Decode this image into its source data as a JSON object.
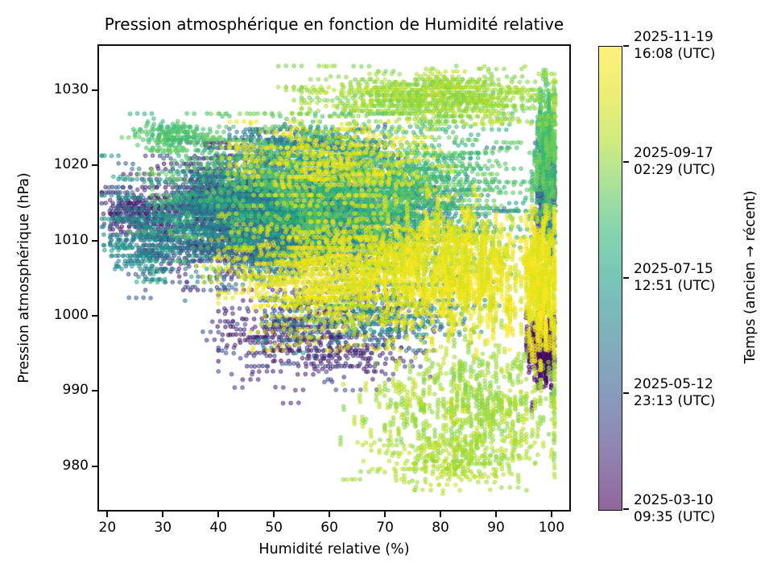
{
  "title": "Pression atmosphérique en fonction de Humidité relative",
  "axes": {
    "x": {
      "label": "Humidité relative (%)",
      "ticks": [
        20,
        30,
        40,
        50,
        60,
        70,
        80,
        90,
        100
      ],
      "range": [
        18.5,
        103.2
      ]
    },
    "y": {
      "label": "Pression atmosphérique (hPa)",
      "ticks": [
        980,
        990,
        1000,
        1010,
        1020,
        1030
      ],
      "range": [
        974.2,
        1035.9
      ]
    }
  },
  "colorbar": {
    "label": "Temps (ancien → récent)",
    "colormap": "viridis",
    "alpha": 0.6,
    "ticks": [
      {
        "line1": "2025-11-19",
        "line2": "16:08 (UTC)",
        "fraction_from_top": 0
      },
      {
        "line1": "2025-09-17",
        "line2": "02:29 (UTC)",
        "fraction_from_top": 0.25
      },
      {
        "line1": "2025-07-15",
        "line2": "12:51 (UTC)",
        "fraction_from_top": 0.5
      },
      {
        "line1": "2025-05-12",
        "line2": "23:13 (UTC)",
        "fraction_from_top": 0.75
      },
      {
        "line1": "2025-03-10",
        "line2": "09:35 (UTC)",
        "fraction_from_top": 1
      }
    ],
    "viridis_stops": [
      "#440154",
      "#482878",
      "#3e4a89",
      "#31688e",
      "#26828e",
      "#1f9e89",
      "#35b779",
      "#6ece58",
      "#b5de2b",
      "#dfe318",
      "#fde725"
    ]
  },
  "chart_data": {
    "type": "scatter",
    "title": "Pression atmosphérique en fonction de Humidité relative",
    "xlabel": "Humidité relative (%)",
    "ylabel": "Pression atmosphérique (hPa)",
    "color_label": "Temps (ancien → récent)",
    "xlim": [
      18.5,
      103.2
    ],
    "ylim": [
      974.2,
      1035.9
    ],
    "xticks": [
      20,
      30,
      40,
      50,
      60,
      70,
      80,
      90,
      100
    ],
    "yticks": [
      980,
      990,
      1000,
      1010,
      1020,
      1030
    ],
    "time_start": "2025-03-10 09:35 (UTC)",
    "time_end": "2025-11-19 16:08 (UTC)",
    "marker": {
      "radius_px": 2.3,
      "fill_alpha": 0.5,
      "edge_alpha": 0.85
    },
    "grid": false,
    "legend": "colorbar-right",
    "n_dots_approx": 19000,
    "clusters": [
      {
        "name": "purple-right-edge",
        "n": 260,
        "t": [
          0.0,
          0.1
        ],
        "x": {
          "m": 98.3,
          "s": 1.1,
          "min": 95.5,
          "max": 100.4
        },
        "y": {
          "m": 995.5,
          "s": 2.2,
          "min": 988.5,
          "max": 1000.5
        },
        "run": {
          "dir": "v",
          "max": 5,
          "step": 0.38
        }
      },
      {
        "name": "purple-main-band",
        "n": 800,
        "t": [
          0.02,
          0.2
        ],
        "x": {
          "m": 45,
          "s": 10,
          "min": 21,
          "max": 75
        },
        "y": {
          "m": 1014,
          "s": 4,
          "min": 1001,
          "max": 1023
        },
        "run": {
          "dir": "h",
          "max": 4,
          "step": 1.3
        }
      },
      {
        "name": "purple-left-tail",
        "n": 90,
        "t": [
          0.03,
          0.15
        ],
        "x": {
          "m": 25,
          "s": 3,
          "min": 20.5,
          "max": 32
        },
        "y": {
          "m": 1014,
          "s": 1.3,
          "min": 1011,
          "max": 1017
        },
        "run": {
          "dir": "h",
          "max": 2,
          "step": 1.2
        }
      },
      {
        "name": "purple-low-scatter",
        "n": 350,
        "t": [
          0.03,
          0.22
        ],
        "x": {
          "m": 57,
          "s": 9,
          "min": 40,
          "max": 80
        },
        "y": {
          "m": 997,
          "s": 3,
          "min": 988,
          "max": 1003.5
        },
        "run": {
          "dir": "h",
          "max": 3,
          "step": 1.4
        }
      },
      {
        "name": "navy-band",
        "n": 600,
        "t": [
          0.18,
          0.32
        ],
        "x": {
          "m": 50,
          "s": 12,
          "min": 22,
          "max": 85
        },
        "y": {
          "m": 1012,
          "s": 4,
          "min": 1002,
          "max": 1021
        },
        "run": {
          "dir": "h",
          "max": 4,
          "step": 1.3
        }
      },
      {
        "name": "navy-right-edge",
        "n": 120,
        "t": [
          0.16,
          0.3
        ],
        "x": {
          "m": 99,
          "s": 1,
          "min": 96.5,
          "max": 100.4
        },
        "y": {
          "m": 1017,
          "s": 3.5,
          "min": 1010,
          "max": 1023
        },
        "run": {
          "dir": "v",
          "max": 4,
          "step": 0.4
        }
      },
      {
        "name": "teal-core",
        "n": 1400,
        "t": [
          0.3,
          0.55
        ],
        "x": {
          "m": 55,
          "s": 14,
          "min": 22,
          "max": 96
        },
        "y": {
          "m": 1013.5,
          "s": 3.5,
          "min": 1004,
          "max": 1022.5
        },
        "run": {
          "dir": "h",
          "max": 5,
          "step": 1.25
        }
      },
      {
        "name": "teal-high",
        "n": 200,
        "t": [
          0.25,
          0.45
        ],
        "x": {
          "m": 55,
          "s": 8,
          "min": 42,
          "max": 70
        },
        "y": {
          "m": 1023,
          "s": 1.1,
          "min": 1021,
          "max": 1026
        },
        "run": {
          "dir": "h",
          "max": 3,
          "step": 1.2
        }
      },
      {
        "name": "teal-left-tail",
        "n": 130,
        "t": [
          0.35,
          0.5
        ],
        "x": {
          "m": 27,
          "s": 4,
          "min": 20.5,
          "max": 36
        },
        "y": {
          "m": 1009,
          "s": 2,
          "min": 1005,
          "max": 1013
        },
        "run": {
          "dir": "h",
          "max": 3,
          "step": 1.2
        }
      },
      {
        "name": "teal-low",
        "n": 250,
        "t": [
          0.3,
          0.5
        ],
        "x": {
          "m": 68,
          "s": 9,
          "min": 48,
          "max": 88
        },
        "y": {
          "m": 1000,
          "s": 2.2,
          "min": 995,
          "max": 1004
        },
        "run": {
          "dir": "h",
          "max": 3,
          "step": 1.3
        }
      },
      {
        "name": "teal-right-edge",
        "n": 100,
        "t": [
          0.32,
          0.5
        ],
        "x": {
          "m": 99.2,
          "s": 0.9,
          "min": 97,
          "max": 100.4
        },
        "y": {
          "m": 1013,
          "s": 3,
          "min": 1007,
          "max": 1019
        },
        "run": {
          "dir": "v",
          "max": 4,
          "step": 0.4
        }
      },
      {
        "name": "green-band",
        "n": 1100,
        "t": [
          0.55,
          0.72
        ],
        "x": {
          "m": 65,
          "s": 15,
          "min": 28,
          "max": 100.4
        },
        "y": {
          "m": 1017,
          "s": 4.5,
          "min": 1006,
          "max": 1027
        },
        "run": {
          "dir": "h",
          "max": 4,
          "step": 1.3
        }
      },
      {
        "name": "green-topleft",
        "n": 120,
        "t": [
          0.58,
          0.7
        ],
        "x": {
          "m": 32,
          "s": 4,
          "min": 25,
          "max": 42
        },
        "y": {
          "m": 1024,
          "s": 1.2,
          "min": 1022,
          "max": 1027
        },
        "run": {
          "dir": "h",
          "max": 3,
          "step": 1.2
        }
      },
      {
        "name": "green-right-stacks",
        "n": 220,
        "t": [
          0.58,
          0.72
        ],
        "x": {
          "m": 99,
          "s": 1,
          "min": 96.5,
          "max": 100.5
        },
        "y": {
          "m": 1023,
          "s": 4,
          "min": 1013,
          "max": 1031.5
        },
        "run": {
          "dir": "v",
          "max": 5,
          "step": 0.4
        }
      },
      {
        "name": "lime-top-arc",
        "n": 480,
        "t": [
          0.7,
          0.82
        ],
        "x": {
          "m": 80,
          "s": 11,
          "min": 55,
          "max": 100.5
        },
        "y": {
          "m": 1029,
          "s": 1.8,
          "min": 1025.5,
          "max": 1033.2
        },
        "run": {
          "dir": "h",
          "max": 4,
          "step": 1.4
        }
      },
      {
        "name": "lime-low-dip",
        "n": 560,
        "t": [
          0.72,
          0.84
        ],
        "x": {
          "m": 86,
          "s": 9,
          "min": 62,
          "max": 100.5
        },
        "y": {
          "m": 988,
          "s": 4.5,
          "min": 976.8,
          "max": 998.5
        },
        "run": {
          "dir": "v",
          "max": 3,
          "step": 0.45
        }
      },
      {
        "name": "lime-low-tail",
        "n": 130,
        "t": [
          0.74,
          0.84
        ],
        "x": {
          "m": 80,
          "s": 8,
          "min": 62,
          "max": 97
        },
        "y": {
          "m": 980.5,
          "s": 1.6,
          "min": 977,
          "max": 984
        },
        "run": {
          "dir": "h",
          "max": 3,
          "step": 1.5
        }
      },
      {
        "name": "yellow-high-band",
        "n": 300,
        "t": [
          0.87,
          1.0
        ],
        "x": {
          "m": 60,
          "s": 9,
          "min": 42,
          "max": 82
        },
        "y": {
          "m": 1020.5,
          "s": 2.5,
          "min": 1015,
          "max": 1026
        },
        "run": {
          "dir": "h",
          "max": 3,
          "step": 1.3
        }
      },
      {
        "name": "yellow-main-h",
        "n": 700,
        "t": [
          0.85,
          1.0
        ],
        "x": {
          "m": 62,
          "s": 10,
          "min": 40,
          "max": 85
        },
        "y": {
          "m": 1006,
          "s": 4.2,
          "min": 995.5,
          "max": 1016
        },
        "run": {
          "dir": "h",
          "max": 4,
          "step": 1.3
        }
      },
      {
        "name": "yellow-main-v",
        "n": 750,
        "t": [
          0.85,
          1.0
        ],
        "x": {
          "m": 84,
          "s": 9,
          "min": 60,
          "max": 100.3
        },
        "y": {
          "m": 1006,
          "s": 4.2,
          "min": 995.5,
          "max": 1016
        },
        "run": {
          "dir": "v",
          "max": 5,
          "step": 0.42
        }
      },
      {
        "name": "yellow-right-col",
        "n": 260,
        "t": [
          0.88,
          1.0
        ],
        "x": {
          "m": 98,
          "s": 1.4,
          "min": 94.5,
          "max": 100.4
        },
        "y": {
          "m": 1004,
          "s": 4.5,
          "min": 994,
          "max": 1013
        },
        "run": {
          "dir": "v",
          "max": 6,
          "step": 0.4
        }
      }
    ]
  }
}
